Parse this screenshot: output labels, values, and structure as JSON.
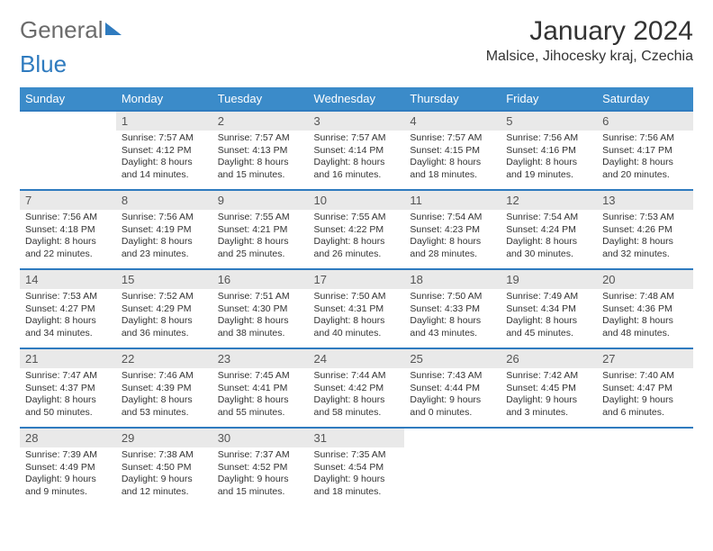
{
  "brand": {
    "name_a": "General",
    "name_b": "Blue"
  },
  "title": "January 2024",
  "location": "Malsice, Jihocesky kraj, Czechia",
  "colors": {
    "header_bg": "#3b8bc9",
    "header_text": "#ffffff",
    "border": "#2f7bbf",
    "daynum_bg": "#e9e9e9",
    "text": "#333333",
    "logo_gray": "#6b6b6b",
    "logo_blue": "#2f7bbf"
  },
  "font": {
    "family": "Arial",
    "title_size": 30,
    "location_size": 16,
    "dayhead_size": 13,
    "body_size": 10.5
  },
  "day_headers": [
    "Sunday",
    "Monday",
    "Tuesday",
    "Wednesday",
    "Thursday",
    "Friday",
    "Saturday"
  ],
  "first_day_offset": 1,
  "days": [
    {
      "n": 1,
      "sunrise": "7:57 AM",
      "sunset": "4:12 PM",
      "daylight": "8 hours and 14 minutes."
    },
    {
      "n": 2,
      "sunrise": "7:57 AM",
      "sunset": "4:13 PM",
      "daylight": "8 hours and 15 minutes."
    },
    {
      "n": 3,
      "sunrise": "7:57 AM",
      "sunset": "4:14 PM",
      "daylight": "8 hours and 16 minutes."
    },
    {
      "n": 4,
      "sunrise": "7:57 AM",
      "sunset": "4:15 PM",
      "daylight": "8 hours and 18 minutes."
    },
    {
      "n": 5,
      "sunrise": "7:56 AM",
      "sunset": "4:16 PM",
      "daylight": "8 hours and 19 minutes."
    },
    {
      "n": 6,
      "sunrise": "7:56 AM",
      "sunset": "4:17 PM",
      "daylight": "8 hours and 20 minutes."
    },
    {
      "n": 7,
      "sunrise": "7:56 AM",
      "sunset": "4:18 PM",
      "daylight": "8 hours and 22 minutes."
    },
    {
      "n": 8,
      "sunrise": "7:56 AM",
      "sunset": "4:19 PM",
      "daylight": "8 hours and 23 minutes."
    },
    {
      "n": 9,
      "sunrise": "7:55 AM",
      "sunset": "4:21 PM",
      "daylight": "8 hours and 25 minutes."
    },
    {
      "n": 10,
      "sunrise": "7:55 AM",
      "sunset": "4:22 PM",
      "daylight": "8 hours and 26 minutes."
    },
    {
      "n": 11,
      "sunrise": "7:54 AM",
      "sunset": "4:23 PM",
      "daylight": "8 hours and 28 minutes."
    },
    {
      "n": 12,
      "sunrise": "7:54 AM",
      "sunset": "4:24 PM",
      "daylight": "8 hours and 30 minutes."
    },
    {
      "n": 13,
      "sunrise": "7:53 AM",
      "sunset": "4:26 PM",
      "daylight": "8 hours and 32 minutes."
    },
    {
      "n": 14,
      "sunrise": "7:53 AM",
      "sunset": "4:27 PM",
      "daylight": "8 hours and 34 minutes."
    },
    {
      "n": 15,
      "sunrise": "7:52 AM",
      "sunset": "4:29 PM",
      "daylight": "8 hours and 36 minutes."
    },
    {
      "n": 16,
      "sunrise": "7:51 AM",
      "sunset": "4:30 PM",
      "daylight": "8 hours and 38 minutes."
    },
    {
      "n": 17,
      "sunrise": "7:50 AM",
      "sunset": "4:31 PM",
      "daylight": "8 hours and 40 minutes."
    },
    {
      "n": 18,
      "sunrise": "7:50 AM",
      "sunset": "4:33 PM",
      "daylight": "8 hours and 43 minutes."
    },
    {
      "n": 19,
      "sunrise": "7:49 AM",
      "sunset": "4:34 PM",
      "daylight": "8 hours and 45 minutes."
    },
    {
      "n": 20,
      "sunrise": "7:48 AM",
      "sunset": "4:36 PM",
      "daylight": "8 hours and 48 minutes."
    },
    {
      "n": 21,
      "sunrise": "7:47 AM",
      "sunset": "4:37 PM",
      "daylight": "8 hours and 50 minutes."
    },
    {
      "n": 22,
      "sunrise": "7:46 AM",
      "sunset": "4:39 PM",
      "daylight": "8 hours and 53 minutes."
    },
    {
      "n": 23,
      "sunrise": "7:45 AM",
      "sunset": "4:41 PM",
      "daylight": "8 hours and 55 minutes."
    },
    {
      "n": 24,
      "sunrise": "7:44 AM",
      "sunset": "4:42 PM",
      "daylight": "8 hours and 58 minutes."
    },
    {
      "n": 25,
      "sunrise": "7:43 AM",
      "sunset": "4:44 PM",
      "daylight": "9 hours and 0 minutes."
    },
    {
      "n": 26,
      "sunrise": "7:42 AM",
      "sunset": "4:45 PM",
      "daylight": "9 hours and 3 minutes."
    },
    {
      "n": 27,
      "sunrise": "7:40 AM",
      "sunset": "4:47 PM",
      "daylight": "9 hours and 6 minutes."
    },
    {
      "n": 28,
      "sunrise": "7:39 AM",
      "sunset": "4:49 PM",
      "daylight": "9 hours and 9 minutes."
    },
    {
      "n": 29,
      "sunrise": "7:38 AM",
      "sunset": "4:50 PM",
      "daylight": "9 hours and 12 minutes."
    },
    {
      "n": 30,
      "sunrise": "7:37 AM",
      "sunset": "4:52 PM",
      "daylight": "9 hours and 15 minutes."
    },
    {
      "n": 31,
      "sunrise": "7:35 AM",
      "sunset": "4:54 PM",
      "daylight": "9 hours and 18 minutes."
    }
  ],
  "labels": {
    "sunrise": "Sunrise:",
    "sunset": "Sunset:",
    "daylight": "Daylight:"
  }
}
